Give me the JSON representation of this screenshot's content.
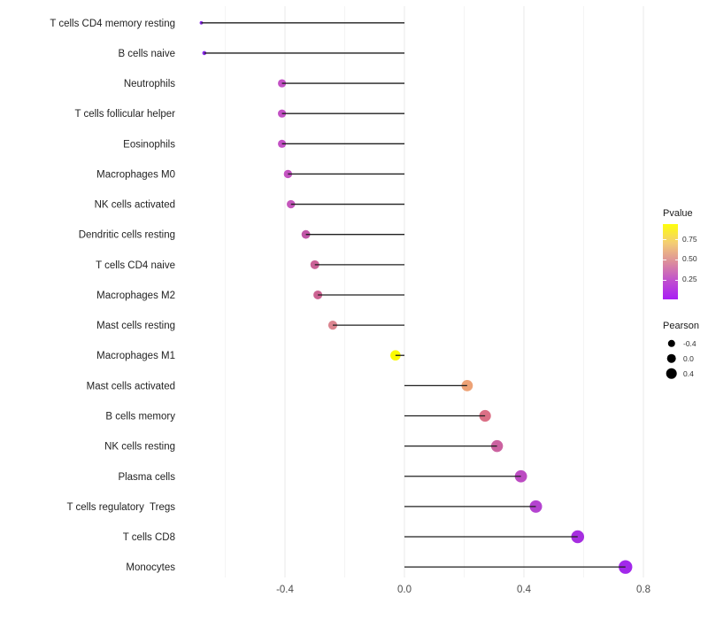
{
  "chart_data": {
    "type": "scatter",
    "variant": "lollipop",
    "orientation": "horizontal",
    "title": "",
    "xlabel": "",
    "ylabel": "",
    "grid": "vertical-only",
    "legend_position": "right",
    "xlim": [
      -0.755,
      0.815
    ],
    "x_ticks": [
      -0.4,
      0.0,
      0.4,
      0.8
    ],
    "x_tick_labels": [
      "-0.4",
      "0.0",
      "0.4",
      "0.8"
    ],
    "x_minor_gridlines": [
      -0.6,
      -0.2,
      0.2,
      0.6
    ],
    "baseline_x": 0.0,
    "categories": [
      "T cells CD4 memory resting",
      "B cells naive",
      "Neutrophils",
      "T cells follicular helper",
      "Eosinophils",
      "Macrophages M0",
      "NK cells activated",
      "Dendritic cells resting",
      "T cells CD4 naive",
      "Macrophages M2",
      "Mast cells resting",
      "Macrophages M1",
      "Mast cells activated",
      "B cells memory",
      "NK cells resting",
      "Plasma cells",
      "T cells regulatory  Tregs",
      "T cells CD8",
      "Monocytes"
    ],
    "series": [
      {
        "name": "Pearson",
        "values": [
          -0.68,
          -0.67,
          -0.41,
          -0.41,
          -0.41,
          -0.39,
          -0.38,
          -0.33,
          -0.3,
          -0.29,
          -0.24,
          -0.03,
          0.21,
          0.27,
          0.31,
          0.39,
          0.44,
          0.58,
          0.74
        ],
        "point_colors": [
          "#8929E8",
          "#8929E8",
          "#C351C5",
          "#C351C5",
          "#C351C5",
          "#C454C1",
          "#C557BC",
          "#C156A7",
          "#CB6297",
          "#CC6392",
          "#DB8590",
          "#FBFB00",
          "#EDA276",
          "#DB7086",
          "#CB62A0",
          "#BC4BC2",
          "#B443D0",
          "#A62EE0",
          "#A228EB"
        ],
        "point_radii": [
          1.9,
          2.3,
          4.6,
          4.6,
          4.6,
          4.7,
          4.7,
          4.9,
          5.0,
          5.0,
          5.1,
          5.8,
          6.4,
          6.6,
          6.7,
          6.9,
          7.0,
          7.3,
          7.7
        ],
        "pvalue_estimated_from_color": [
          0.01,
          0.01,
          0.3,
          0.3,
          0.3,
          0.32,
          0.34,
          0.38,
          0.45,
          0.46,
          0.55,
          0.9,
          0.65,
          0.52,
          0.45,
          0.33,
          0.28,
          0.15,
          0.1
        ]
      }
    ],
    "legends": {
      "pvalue": {
        "title": "Pvalue",
        "tick_labels": [
          "0.75",
          "0.50",
          "0.25"
        ],
        "range": [
          0,
          0.93
        ],
        "gradient_top_to_bottom": [
          "#FEFE0B",
          "#F4CD74",
          "#DD8F9B",
          "#C050CE",
          "#A91EF5"
        ]
      },
      "pearson": {
        "title": "Pearson",
        "items": [
          {
            "label": "-0.4",
            "radius": 4.2
          },
          {
            "label": "0.0",
            "radius": 5.3
          },
          {
            "label": "0.4",
            "radius": 6.3
          }
        ]
      }
    },
    "style_colors": {
      "background": "#ffffff",
      "major_gridline": "#e8e8e8",
      "minor_gridline": "#f4f4f4",
      "stem": "#1f1f1f",
      "axis_text": "#4d4d4d",
      "category_text": "#232323"
    }
  }
}
